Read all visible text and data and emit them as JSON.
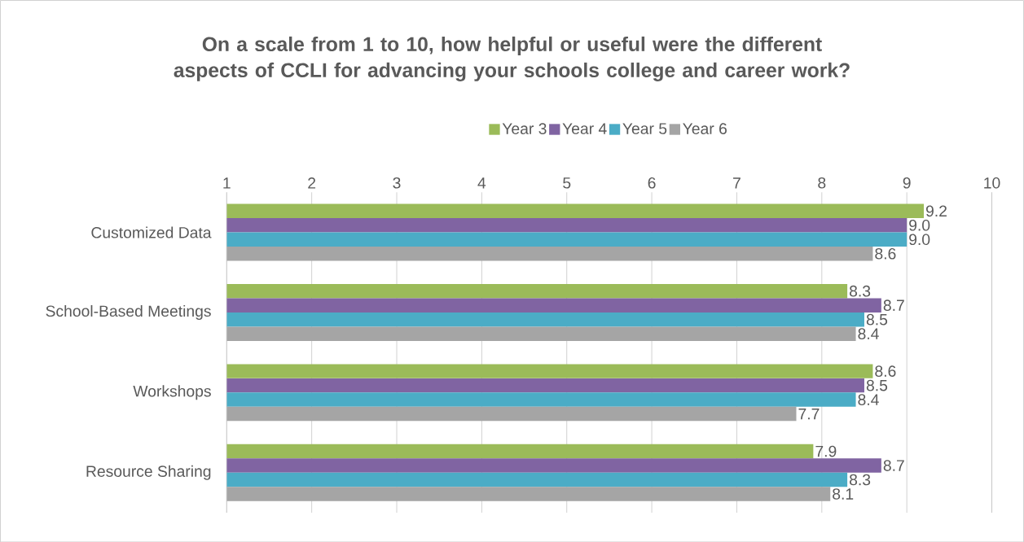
{
  "chart_data": {
    "type": "bar",
    "orientation": "horizontal",
    "title": "On a scale from 1 to 10, how helpful or useful were the different aspects of CCLI for advancing your schools college and career work?",
    "categories": [
      "Customized Data",
      "School-Based Meetings",
      "Workshops",
      "Resource Sharing"
    ],
    "series": [
      {
        "name": "Year 3",
        "color": "#9bbb59",
        "values": [
          9.2,
          8.3,
          8.6,
          7.9
        ],
        "value_labels": [
          "9.2",
          "8.3",
          "8.6",
          "7.9"
        ]
      },
      {
        "name": "Year 4",
        "color": "#8064a2",
        "values": [
          9.0,
          8.7,
          8.5,
          8.7
        ],
        "value_labels": [
          "9.0",
          "8.7",
          "8.5",
          "8.7"
        ]
      },
      {
        "name": "Year 5",
        "color": "#4bacc6",
        "values": [
          9.0,
          8.5,
          8.4,
          8.3
        ],
        "value_labels": [
          "9.0",
          "8.5",
          "8.4",
          "8.3"
        ]
      },
      {
        "name": "Year 6",
        "color": "#a5a5a5",
        "values": [
          8.6,
          8.4,
          7.7,
          8.1
        ],
        "value_labels": [
          "8.6",
          "8.4",
          "7.7",
          "8.1"
        ]
      }
    ],
    "xlim": [
      1,
      10
    ],
    "xticks": [
      1,
      2,
      3,
      4,
      5,
      6,
      7,
      8,
      9,
      10
    ],
    "grid": "x",
    "legend": "top"
  }
}
